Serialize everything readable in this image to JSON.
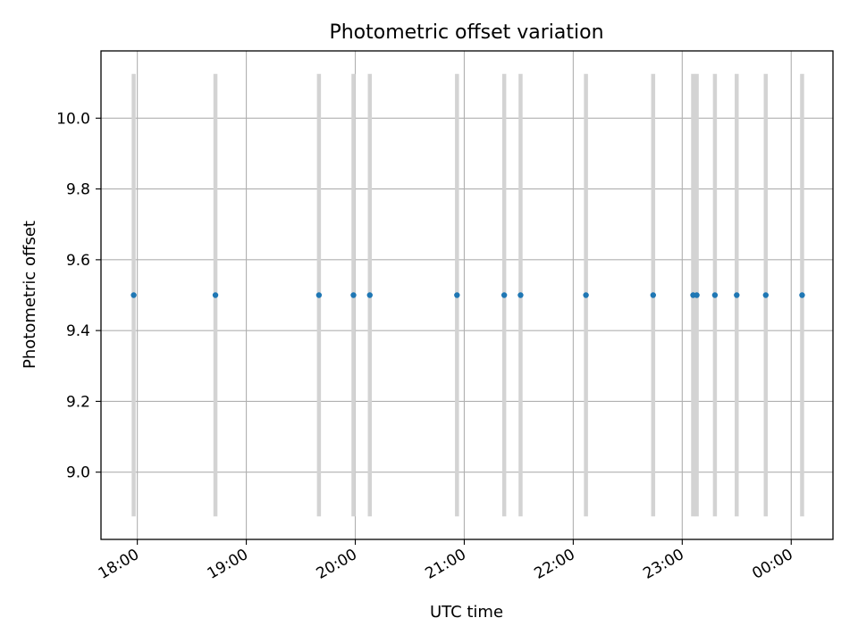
{
  "chart_data": {
    "type": "scatter",
    "title": "Photometric offset variation",
    "xlabel": "UTC time",
    "ylabel": "Photometric offset",
    "grid": true,
    "colors": {
      "points": "#1f77b4",
      "errorbars": "#d3d3d3",
      "grid": "#b0b0b0"
    },
    "xlim": [
      "17:40",
      "00:23"
    ],
    "ylim": [
      8.81,
      10.19
    ],
    "x_ticks": [
      "18:00",
      "19:00",
      "20:00",
      "21:00",
      "22:00",
      "23:00",
      "00:00"
    ],
    "y_ticks": [
      "9.0",
      "9.2",
      "9.4",
      "9.6",
      "9.8",
      "10.0"
    ],
    "points": [
      {
        "x": "17:58",
        "y": 9.5,
        "yerr": 0.625
      },
      {
        "x": "18:43",
        "y": 9.5,
        "yerr": 0.625
      },
      {
        "x": "19:40",
        "y": 9.5,
        "yerr": 0.625
      },
      {
        "x": "19:59",
        "y": 9.5,
        "yerr": 0.625
      },
      {
        "x": "20:08",
        "y": 9.5,
        "yerr": 0.625
      },
      {
        "x": "20:56",
        "y": 9.5,
        "yerr": 0.625
      },
      {
        "x": "21:22",
        "y": 9.5,
        "yerr": 0.625
      },
      {
        "x": "21:31",
        "y": 9.5,
        "yerr": 0.625
      },
      {
        "x": "22:07",
        "y": 9.5,
        "yerr": 0.625
      },
      {
        "x": "22:44",
        "y": 9.5,
        "yerr": 0.625
      },
      {
        "x": "23:06",
        "y": 9.5,
        "yerr": 0.625
      },
      {
        "x": "23:08",
        "y": 9.5,
        "yerr": 0.625
      },
      {
        "x": "23:18",
        "y": 9.5,
        "yerr": 0.625
      },
      {
        "x": "23:30",
        "y": 9.5,
        "yerr": 0.625
      },
      {
        "x": "23:46",
        "y": 9.5,
        "yerr": 0.625
      },
      {
        "x": "00:06",
        "y": 9.5,
        "yerr": 0.625
      }
    ]
  }
}
